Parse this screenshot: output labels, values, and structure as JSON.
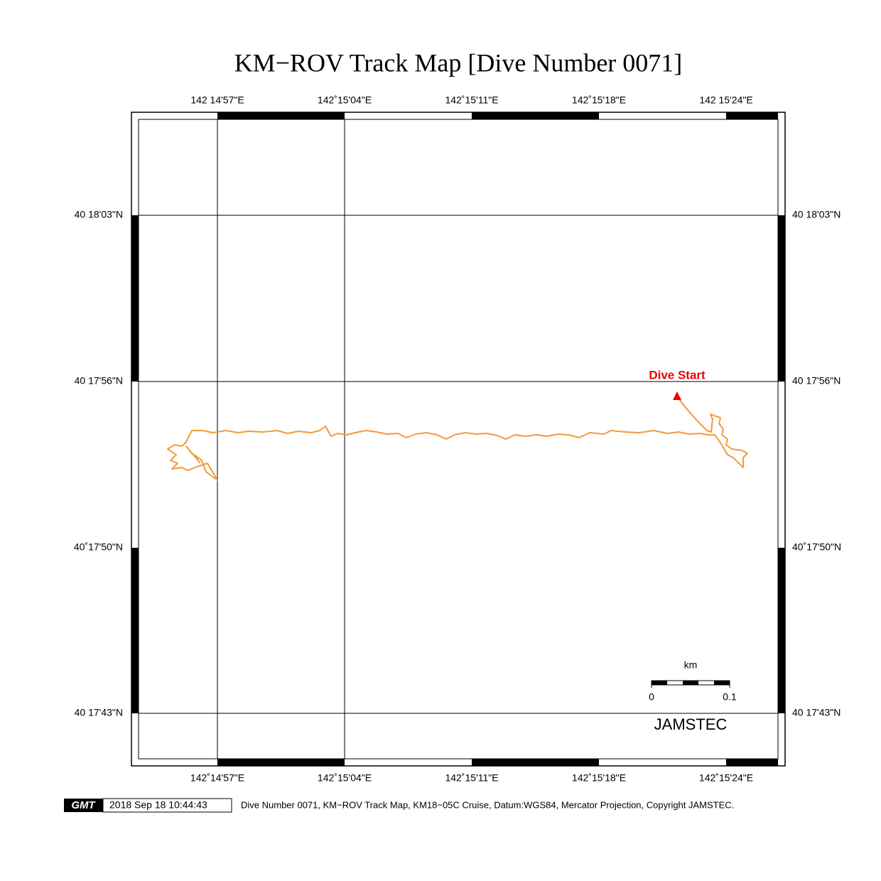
{
  "title": "KM−ROV Track Map [Dive Number 0071]",
  "top_labels": [
    "142 14'57\"E",
    "142˚15'04\"E",
    "142˚15'11\"E",
    "142˚15'18\"E",
    "142 15'24\"E"
  ],
  "bottom_labels": [
    "142˚14'57\"E",
    "142˚15'04\"E",
    "142˚15'11\"E",
    "142˚15'18\"E",
    "142˚15'24\"E"
  ],
  "left_labels": [
    "40 18'03\"N",
    "40 17'56\"N",
    "40˚17'50\"N",
    "40 17'43\"N"
  ],
  "right_labels": [
    "40 18'03\"N",
    "40 17'56\"N",
    "40˚17'50\"N",
    "40 17'43\"N"
  ],
  "marker_label": "Dive Start",
  "scale_bar": {
    "unit": "km",
    "start": "0",
    "end": "0.1"
  },
  "watermark": "JAMSTEC",
  "footer": {
    "logo": "GMT",
    "timestamp": "2018 Sep 18 10:44:43",
    "caption": "Dive Number 0071, KM−ROV Track Map, KM18−05C Cruise, Datum:WGS84, Mercator Projection, Copyright JAMSTEC."
  }
}
